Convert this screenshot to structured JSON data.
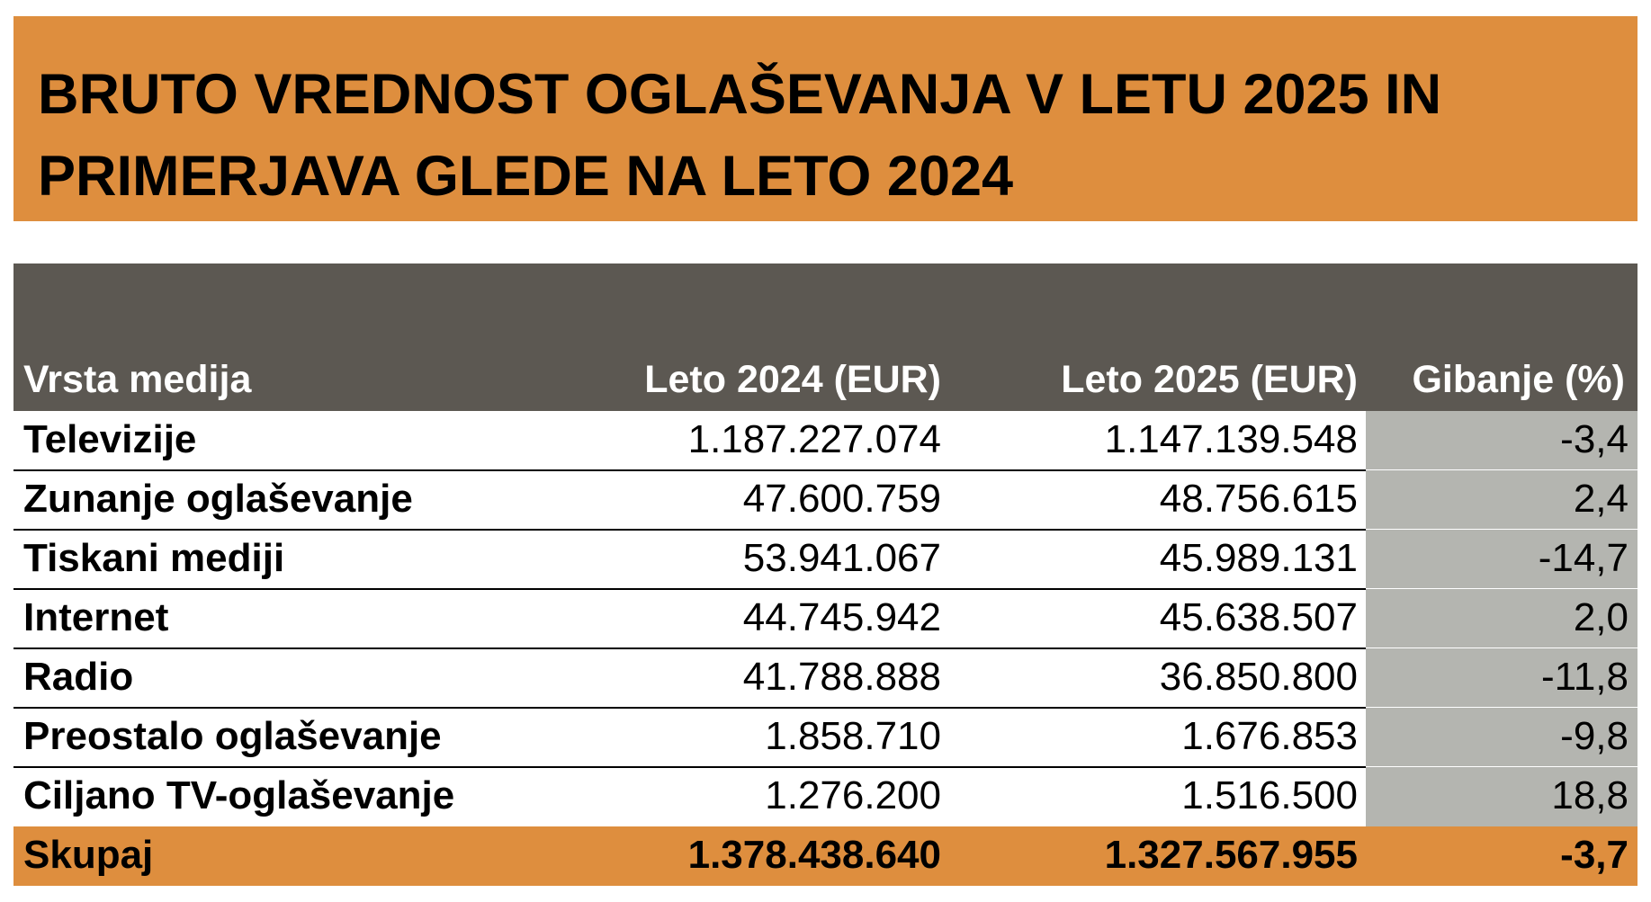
{
  "title": "BRUTO VREDNOST OGLAŠEVANJA V LETU 2025 IN PRIMERJAVA GLEDE NA LETO 2024",
  "colors": {
    "accent": "#DE8E3E",
    "header_bg": "#5C5852",
    "change_column_bg": "#B4B5B0"
  },
  "table": {
    "headers": [
      "Vrsta medija",
      "Leto 2024 (EUR)",
      "Leto 2025 (EUR)",
      "Gibanje (%)"
    ],
    "rows": [
      [
        "Televizije",
        "1.187.227.074",
        "1.147.139.548",
        "-3,4"
      ],
      [
        "Zunanje oglaševanje",
        "47.600.759",
        "48.756.615",
        "2,4"
      ],
      [
        "Tiskani mediji",
        "53.941.067",
        "45.989.131",
        "-14,7"
      ],
      [
        "Internet",
        "44.745.942",
        "45.638.507",
        "2,0"
      ],
      [
        "Radio",
        "41.788.888",
        "36.850.800",
        "-11,8"
      ],
      [
        "Preostalo oglaševanje",
        "1.858.710",
        "1.676.853",
        "-9,8"
      ],
      [
        "Ciljano TV-oglaševanje",
        "1.276.200",
        "1.516.500",
        "18,8"
      ]
    ],
    "total": [
      "Skupaj",
      "1.378.438.640",
      "1.327.567.955",
      "-3,7"
    ]
  }
}
